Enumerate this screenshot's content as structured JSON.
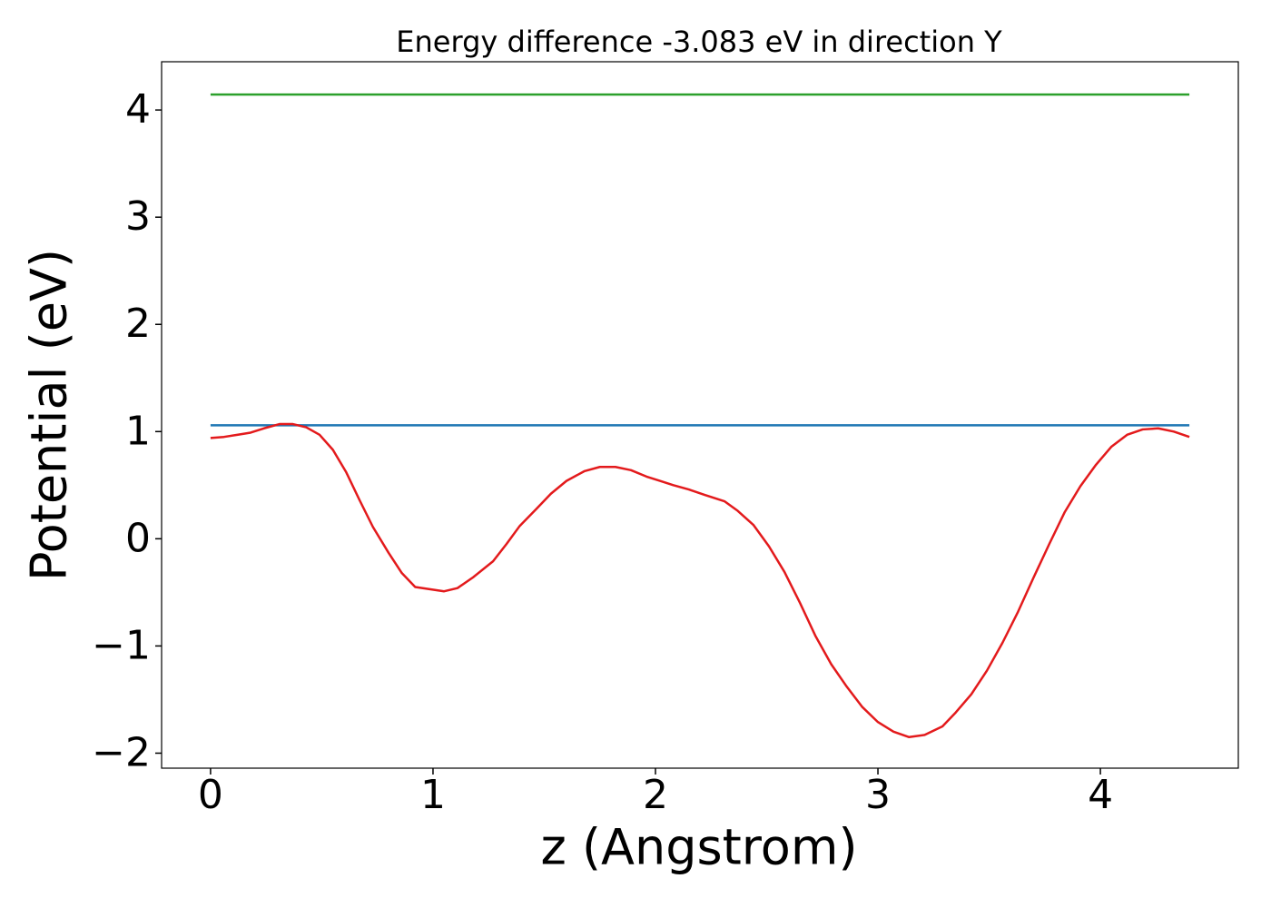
{
  "chart_data": {
    "type": "line",
    "title": "Energy difference -3.083 eV in direction Y",
    "x_label": "z (Angstrom)",
    "y_label": "Potential (eV)",
    "xlim": [
      -0.22,
      4.62
    ],
    "ylim": [
      -2.14,
      4.45
    ],
    "xticks": [
      0,
      1,
      2,
      3,
      4
    ],
    "yticks": [
      {
        "value": -2,
        "label": "−2"
      },
      {
        "value": -1,
        "label": "−1"
      },
      0,
      1,
      2,
      3,
      4
    ],
    "grid": false,
    "series": [
      {
        "color": "#2ca02c",
        "x": [
          0,
          4.4
        ],
        "values": [
          4.144,
          4.144
        ]
      },
      {
        "color": "#1f77b4",
        "x": [
          0,
          4.4
        ],
        "values": [
          1.059,
          1.059
        ]
      },
      {
        "color": "#e31a1c",
        "x": [
          0,
          0.06,
          0.12,
          0.18,
          0.24,
          0.31,
          0.37,
          0.43,
          0.49,
          0.55,
          0.61,
          0.67,
          0.73,
          0.8,
          0.86,
          0.92,
          1.05,
          1.11,
          1.18,
          1.27,
          1.33,
          1.39,
          1.47,
          1.53,
          1.6,
          1.68,
          1.75,
          1.82,
          1.89,
          1.96,
          2.02,
          2.08,
          2.15,
          2.22,
          2.31,
          2.37,
          2.44,
          2.51,
          2.58,
          2.65,
          2.72,
          2.79,
          2.86,
          2.93,
          3.0,
          3.07,
          3.14,
          3.21,
          3.29,
          3.35,
          3.42,
          3.49,
          3.56,
          3.63,
          3.7,
          3.77,
          3.84,
          3.91,
          3.98,
          4.05,
          4.12,
          4.19,
          4.26,
          4.33,
          4.4
        ],
        "values": [
          0.94,
          0.95,
          0.97,
          0.99,
          1.03,
          1.07,
          1.07,
          1.04,
          0.97,
          0.83,
          0.62,
          0.36,
          0.11,
          -0.13,
          -0.32,
          -0.45,
          -0.49,
          -0.46,
          -0.36,
          -0.21,
          -0.05,
          0.12,
          0.29,
          0.42,
          0.54,
          0.63,
          0.67,
          0.67,
          0.64,
          0.58,
          0.54,
          0.5,
          0.46,
          0.41,
          0.35,
          0.26,
          0.13,
          -0.07,
          -0.31,
          -0.6,
          -0.91,
          -1.17,
          -1.38,
          -1.57,
          -1.71,
          -1.8,
          -1.85,
          -1.83,
          -1.75,
          -1.62,
          -1.45,
          -1.23,
          -0.97,
          -0.68,
          -0.36,
          -0.05,
          0.25,
          0.49,
          0.69,
          0.86,
          0.97,
          1.02,
          1.03,
          1.0,
          0.95
        ]
      }
    ]
  }
}
